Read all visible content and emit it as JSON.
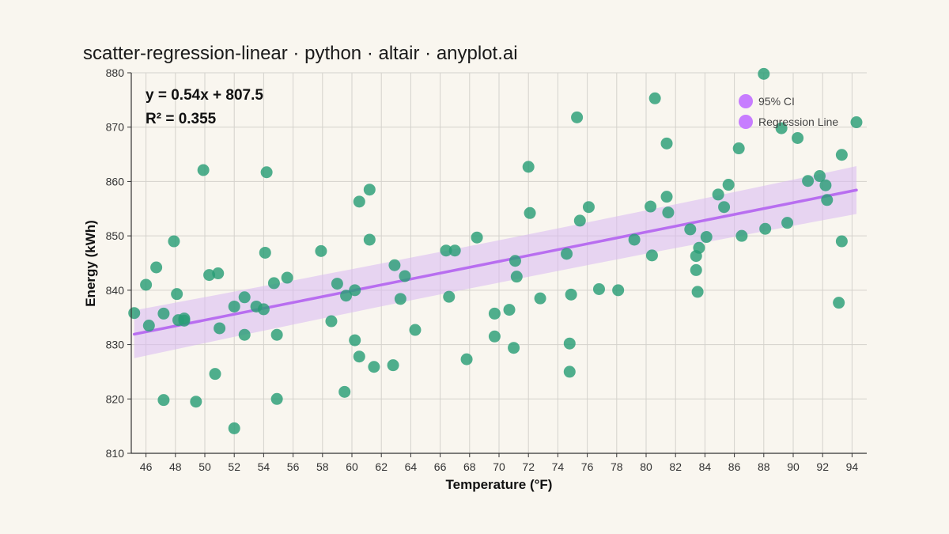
{
  "chart_data": {
    "type": "scatter",
    "title": "scatter-regression-linear · python · altair · anyplot.ai",
    "xlabel": "Temperature (°F)",
    "ylabel": "Energy (kWh)",
    "xlim": [
      45,
      95
    ],
    "ylim": [
      810,
      880
    ],
    "x_ticks": [
      46,
      48,
      50,
      52,
      54,
      56,
      58,
      60,
      62,
      64,
      66,
      68,
      70,
      72,
      74,
      76,
      78,
      80,
      82,
      84,
      86,
      88,
      90,
      92,
      94
    ],
    "y_ticks": [
      810,
      820,
      830,
      840,
      850,
      860,
      870,
      880
    ],
    "grid": true,
    "legend_position": "top-right",
    "legend": [
      {
        "label": "95% CI",
        "color": "#c77dff"
      },
      {
        "label": "Regression Line",
        "color": "#c77dff"
      }
    ],
    "annotation": {
      "equation": "y = 0.54x + 807.5",
      "r_squared": "R² = 0.355"
    },
    "regression": {
      "slope": 0.54,
      "intercept": 807.5,
      "x_range": [
        45.2,
        94.3
      ],
      "ci_half_width": [
        3.9,
        4.4
      ]
    },
    "colors": {
      "points": "#2a9d76",
      "line": "#b86ef0",
      "band": "#d9b8f2"
    },
    "points": [
      {
        "x": 45.2,
        "y": 835.8
      },
      {
        "x": 46.0,
        "y": 841.0
      },
      {
        "x": 46.2,
        "y": 833.5
      },
      {
        "x": 46.7,
        "y": 844.2
      },
      {
        "x": 47.2,
        "y": 835.7
      },
      {
        "x": 47.2,
        "y": 819.8
      },
      {
        "x": 47.9,
        "y": 849.0
      },
      {
        "x": 48.1,
        "y": 839.3
      },
      {
        "x": 48.2,
        "y": 834.5
      },
      {
        "x": 48.6,
        "y": 834.8
      },
      {
        "x": 48.6,
        "y": 834.4
      },
      {
        "x": 49.4,
        "y": 819.5
      },
      {
        "x": 49.9,
        "y": 862.1
      },
      {
        "x": 50.3,
        "y": 842.8
      },
      {
        "x": 50.7,
        "y": 824.6
      },
      {
        "x": 50.9,
        "y": 843.1
      },
      {
        "x": 51.0,
        "y": 833.0
      },
      {
        "x": 52.0,
        "y": 837.0
      },
      {
        "x": 52.0,
        "y": 814.6
      },
      {
        "x": 52.7,
        "y": 838.7
      },
      {
        "x": 52.7,
        "y": 831.8
      },
      {
        "x": 53.5,
        "y": 837.0
      },
      {
        "x": 54.0,
        "y": 836.5
      },
      {
        "x": 54.1,
        "y": 846.9
      },
      {
        "x": 54.2,
        "y": 861.7
      },
      {
        "x": 54.7,
        "y": 841.3
      },
      {
        "x": 54.9,
        "y": 831.8
      },
      {
        "x": 54.9,
        "y": 820.0
      },
      {
        "x": 55.6,
        "y": 842.3
      },
      {
        "x": 57.9,
        "y": 847.2
      },
      {
        "x": 58.6,
        "y": 834.3
      },
      {
        "x": 59.0,
        "y": 841.2
      },
      {
        "x": 59.5,
        "y": 821.3
      },
      {
        "x": 59.6,
        "y": 839.0
      },
      {
        "x": 60.2,
        "y": 840.0
      },
      {
        "x": 60.2,
        "y": 830.8
      },
      {
        "x": 60.5,
        "y": 856.3
      },
      {
        "x": 60.5,
        "y": 827.8
      },
      {
        "x": 61.2,
        "y": 858.5
      },
      {
        "x": 61.2,
        "y": 849.3
      },
      {
        "x": 61.5,
        "y": 825.9
      },
      {
        "x": 62.8,
        "y": 826.2
      },
      {
        "x": 62.9,
        "y": 844.6
      },
      {
        "x": 63.3,
        "y": 838.4
      },
      {
        "x": 63.6,
        "y": 842.6
      },
      {
        "x": 64.3,
        "y": 832.7
      },
      {
        "x": 66.4,
        "y": 847.3
      },
      {
        "x": 66.6,
        "y": 838.8
      },
      {
        "x": 67.0,
        "y": 847.3
      },
      {
        "x": 67.8,
        "y": 827.3
      },
      {
        "x": 68.5,
        "y": 849.7
      },
      {
        "x": 69.7,
        "y": 835.7
      },
      {
        "x": 69.7,
        "y": 831.5
      },
      {
        "x": 70.7,
        "y": 836.4
      },
      {
        "x": 71.0,
        "y": 829.4
      },
      {
        "x": 71.1,
        "y": 845.4
      },
      {
        "x": 71.2,
        "y": 842.5
      },
      {
        "x": 72.0,
        "y": 862.7
      },
      {
        "x": 72.1,
        "y": 854.2
      },
      {
        "x": 72.8,
        "y": 838.5
      },
      {
        "x": 74.6,
        "y": 846.7
      },
      {
        "x": 74.8,
        "y": 830.2
      },
      {
        "x": 74.8,
        "y": 825.0
      },
      {
        "x": 74.9,
        "y": 839.2
      },
      {
        "x": 75.3,
        "y": 871.8
      },
      {
        "x": 75.5,
        "y": 852.8
      },
      {
        "x": 76.1,
        "y": 855.3
      },
      {
        "x": 76.8,
        "y": 840.2
      },
      {
        "x": 78.1,
        "y": 840.0
      },
      {
        "x": 79.2,
        "y": 849.3
      },
      {
        "x": 80.3,
        "y": 855.4
      },
      {
        "x": 80.4,
        "y": 846.4
      },
      {
        "x": 80.6,
        "y": 875.3
      },
      {
        "x": 81.4,
        "y": 867.0
      },
      {
        "x": 81.4,
        "y": 857.2
      },
      {
        "x": 81.5,
        "y": 854.3
      },
      {
        "x": 83.0,
        "y": 851.2
      },
      {
        "x": 83.4,
        "y": 846.3
      },
      {
        "x": 83.4,
        "y": 843.7
      },
      {
        "x": 83.5,
        "y": 839.7
      },
      {
        "x": 83.6,
        "y": 847.8
      },
      {
        "x": 84.1,
        "y": 849.8
      },
      {
        "x": 84.9,
        "y": 857.6
      },
      {
        "x": 85.3,
        "y": 855.3
      },
      {
        "x": 85.6,
        "y": 859.4
      },
      {
        "x": 86.3,
        "y": 866.1
      },
      {
        "x": 86.5,
        "y": 850.0
      },
      {
        "x": 88.0,
        "y": 879.8
      },
      {
        "x": 88.1,
        "y": 851.3
      },
      {
        "x": 89.2,
        "y": 869.8
      },
      {
        "x": 89.6,
        "y": 852.4
      },
      {
        "x": 90.3,
        "y": 868.0
      },
      {
        "x": 91.0,
        "y": 860.1
      },
      {
        "x": 91.8,
        "y": 861.0
      },
      {
        "x": 92.2,
        "y": 859.3
      },
      {
        "x": 92.3,
        "y": 856.6
      },
      {
        "x": 93.1,
        "y": 837.7
      },
      {
        "x": 93.3,
        "y": 849.0
      },
      {
        "x": 93.3,
        "y": 864.9
      },
      {
        "x": 94.3,
        "y": 870.9
      }
    ]
  }
}
